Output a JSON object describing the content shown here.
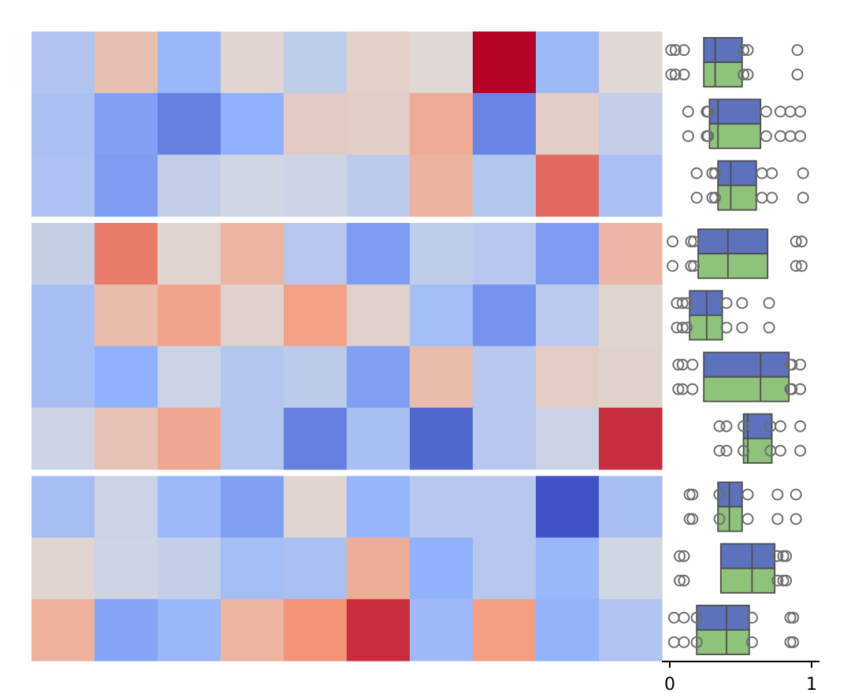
{
  "chart_data": [
    {
      "type": "heatmap",
      "title": "",
      "colormap": "coolwarm",
      "value_range": [
        -1,
        1
      ],
      "row_groups": [
        3,
        4,
        3
      ],
      "rows": [
        [
          -0.28,
          0.22,
          -0.42,
          0.06,
          -0.18,
          0.1,
          0.04,
          1.0,
          -0.4,
          0.04
        ],
        [
          -0.32,
          -0.58,
          -0.74,
          -0.48,
          0.14,
          0.11,
          0.38,
          -0.72,
          0.11,
          -0.16
        ],
        [
          -0.3,
          -0.6,
          -0.16,
          -0.08,
          -0.1,
          -0.21,
          0.31,
          -0.26,
          0.66,
          -0.32
        ],
        [
          -0.15,
          0.6,
          0.06,
          0.3,
          -0.24,
          -0.6,
          -0.18,
          -0.24,
          -0.6,
          0.28
        ],
        [
          -0.34,
          0.25,
          0.42,
          0.08,
          0.44,
          0.09,
          -0.36,
          -0.64,
          -0.22,
          0.07
        ],
        [
          -0.34,
          -0.48,
          -0.12,
          -0.26,
          -0.2,
          -0.58,
          0.25,
          -0.24,
          0.13,
          0.09
        ],
        [
          -0.1,
          0.2,
          0.4,
          -0.26,
          -0.74,
          -0.33,
          -0.86,
          -0.24,
          -0.12,
          0.86
        ],
        [
          -0.34,
          -0.12,
          -0.4,
          -0.58,
          0.06,
          -0.44,
          -0.24,
          -0.24,
          -0.97,
          -0.34
        ],
        [
          0.06,
          -0.1,
          -0.16,
          -0.36,
          -0.32,
          0.35,
          -0.48,
          -0.24,
          -0.42,
          -0.08
        ],
        [
          0.32,
          -0.56,
          -0.42,
          0.3,
          0.52,
          0.86,
          -0.4,
          0.46,
          -0.46,
          -0.28
        ]
      ]
    },
    {
      "type": "box",
      "orientation": "horizontal",
      "xlim": [
        0,
        1
      ],
      "xticks": [
        "0",
        "1"
      ],
      "colors": {
        "upper": "#5c72bd",
        "lower": "#8fc27a",
        "edge": "#4d4d4d",
        "outlier": "#6e6e6e"
      },
      "rows": [
        {
          "q1": 0.24,
          "median": 0.32,
          "q3": 0.51,
          "outliers": [
            0.01,
            0.04,
            0.1,
            0.52,
            0.55,
            0.9
          ]
        },
        {
          "q1": 0.28,
          "median": 0.34,
          "q3": 0.64,
          "outliers": [
            0.13,
            0.26,
            0.27,
            0.68,
            0.78,
            0.85,
            0.92
          ]
        },
        {
          "q1": 0.34,
          "median": 0.43,
          "q3": 0.61,
          "outliers": [
            0.19,
            0.3,
            0.32,
            0.65,
            0.72,
            0.94
          ]
        },
        {
          "q1": 0.2,
          "median": 0.41,
          "q3": 0.69,
          "outliers": [
            0.02,
            0.15,
            0.17,
            0.89,
            0.93
          ]
        },
        {
          "q1": 0.14,
          "median": 0.26,
          "q3": 0.37,
          "outliers": [
            0.05,
            0.09,
            0.12,
            0.4,
            0.51,
            0.7
          ]
        },
        {
          "q1": 0.24,
          "median": 0.64,
          "q3": 0.84,
          "outliers": [
            0.06,
            0.09,
            0.16,
            0.85,
            0.86,
            0.92
          ]
        },
        {
          "q1": 0.52,
          "median": 0.55,
          "q3": 0.72,
          "outliers": [
            0.35,
            0.4,
            0.52,
            0.71,
            0.78,
            0.92
          ]
        },
        {
          "q1": 0.34,
          "median": 0.42,
          "q3": 0.51,
          "outliers": [
            0.14,
            0.16,
            0.35,
            0.55,
            0.76,
            0.89
          ]
        },
        {
          "q1": 0.36,
          "median": 0.58,
          "q3": 0.74,
          "outliers": [
            0.07,
            0.1,
            0.76,
            0.8,
            0.82
          ]
        },
        {
          "q1": 0.19,
          "median": 0.4,
          "q3": 0.56,
          "outliers": [
            0.03,
            0.1,
            0.19,
            0.58,
            0.85,
            0.87
          ]
        }
      ]
    }
  ]
}
